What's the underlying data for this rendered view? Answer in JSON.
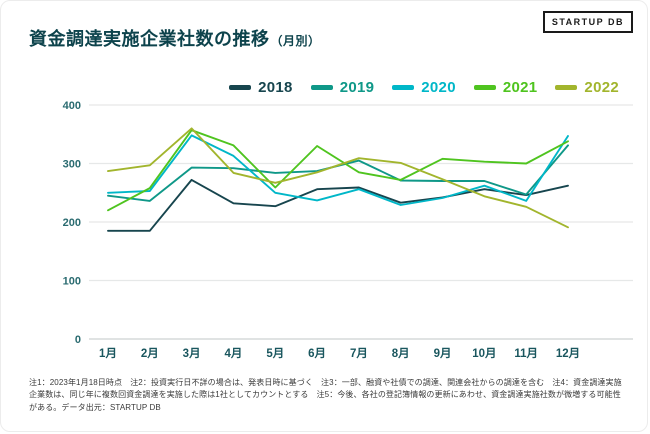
{
  "header": {
    "title": "資金調達実施企業社数の推移",
    "title_suffix": "（月別）",
    "logo_text": "STARTUP DB"
  },
  "chart_data": {
    "type": "line",
    "title": "資金調達実施企業社数の推移（月別）",
    "categories": [
      "1月",
      "2月",
      "3月",
      "4月",
      "5月",
      "6月",
      "7月",
      "8月",
      "9月",
      "10月",
      "11月",
      "12月"
    ],
    "xlabel": "",
    "ylabel": "",
    "ylim": [
      0,
      400
    ],
    "yticks": [
      0,
      100,
      200,
      300,
      400
    ],
    "grid": true,
    "legend_position": "top",
    "series": [
      {
        "name": "2018",
        "color": "#17454e",
        "values": [
          185,
          185,
          272,
          232,
          227,
          256,
          259,
          233,
          242,
          256,
          246,
          262
        ]
      },
      {
        "name": "2019",
        "color": "#0f9888",
        "values": [
          245,
          236,
          293,
          292,
          284,
          287,
          305,
          271,
          270,
          270,
          247,
          331
        ]
      },
      {
        "name": "2020",
        "color": "#00b7c8",
        "values": [
          250,
          253,
          348,
          313,
          250,
          237,
          256,
          229,
          241,
          262,
          236,
          347
        ]
      },
      {
        "name": "2021",
        "color": "#4fc41f",
        "values": [
          220,
          258,
          357,
          331,
          259,
          330,
          285,
          272,
          308,
          303,
          300,
          338
        ]
      },
      {
        "name": "2022",
        "color": "#a2b52d",
        "values": [
          287,
          297,
          360,
          284,
          267,
          285,
          309,
          301,
          273,
          244,
          226,
          191
        ]
      }
    ],
    "colors": {
      "tick_label": "#2a6b70",
      "month_label": "#19565e",
      "gridline": "#e6e8e8",
      "baseline": "#cdd2d2"
    }
  },
  "footer": {
    "notes": "注1：2023年1月18日時点　注2：投資実行日不詳の場合は、発表日時に基づく　注3：一部、融資や社債での調達、関連会社からの調達を含む　注4：資金調達実施企業数は、同じ年に複数回資金調達を実施した際は1社としてカウントとする　注5：今後、各社の登記簿情報の更新にあわせ、資金調達実施社数が微増する可能性がある。データ出元：STARTUP DB"
  }
}
